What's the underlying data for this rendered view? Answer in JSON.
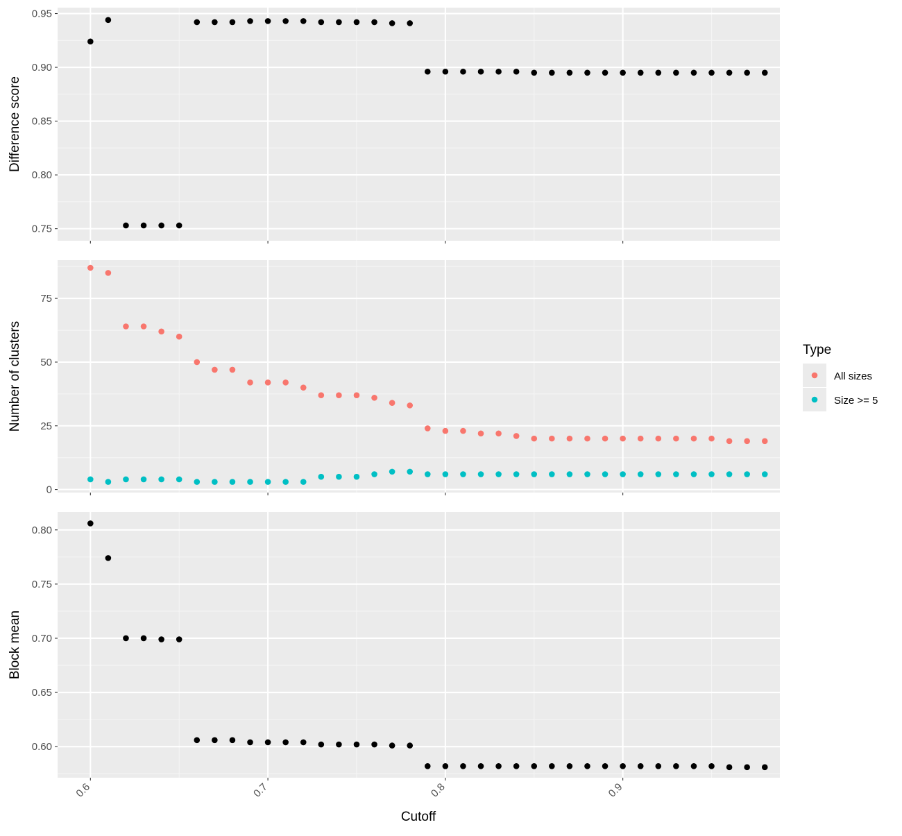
{
  "colors": {
    "panel_bg": "#EBEBEB",
    "grid_major": "#FFFFFF",
    "grid_minor": "#F5F5F5",
    "tick": "#333333",
    "point_default": "#000000",
    "all_sizes": "#F8766D",
    "size_ge_5": "#00BFC4"
  },
  "x_axis": {
    "title": "Cutoff",
    "ticks": [
      0.6,
      0.7,
      0.8,
      0.9
    ],
    "tick_labels": [
      "0.6",
      "0.7",
      "0.8",
      "0.9"
    ]
  },
  "legend": {
    "title": "Type",
    "entries": [
      {
        "label": "All sizes",
        "color": "#F8766D"
      },
      {
        "label": "Size >= 5",
        "color": "#00BFC4"
      }
    ]
  },
  "chart_data": [
    {
      "type": "scatter",
      "ylabel": "Difference score",
      "xlim": [
        0.5815,
        0.9885
      ],
      "ylim": [
        0.7388,
        0.9555
      ],
      "yticks": [
        0.75,
        0.8,
        0.85,
        0.9,
        0.95
      ],
      "ytick_labels": [
        "0.75",
        "0.80",
        "0.85",
        "0.90",
        "0.95"
      ],
      "x": [
        0.6,
        0.61,
        0.62,
        0.63,
        0.64,
        0.65,
        0.66,
        0.67,
        0.68,
        0.69,
        0.7,
        0.71,
        0.72,
        0.73,
        0.74,
        0.75,
        0.76,
        0.77,
        0.78,
        0.79,
        0.8,
        0.81,
        0.82,
        0.83,
        0.84,
        0.85,
        0.86,
        0.87,
        0.88,
        0.89,
        0.9,
        0.91,
        0.92,
        0.93,
        0.94,
        0.95,
        0.96,
        0.97,
        0.98
      ],
      "series": [
        {
          "color": "#000000",
          "values": [
            0.924,
            0.944,
            0.753,
            0.753,
            0.753,
            0.753,
            0.942,
            0.942,
            0.942,
            0.943,
            0.943,
            0.943,
            0.943,
            0.942,
            0.942,
            0.942,
            0.942,
            0.941,
            0.941,
            0.896,
            0.896,
            0.896,
            0.896,
            0.896,
            0.896,
            0.895,
            0.895,
            0.895,
            0.895,
            0.895,
            0.895,
            0.895,
            0.895,
            0.895,
            0.895,
            0.895,
            0.895,
            0.895,
            0.895
          ]
        }
      ]
    },
    {
      "type": "scatter",
      "ylabel": "Number of clusters",
      "xlim": [
        0.5815,
        0.9885
      ],
      "ylim": [
        -1.2,
        90.0
      ],
      "yticks": [
        0,
        25,
        50,
        75
      ],
      "ytick_labels": [
        "0",
        "25",
        "50",
        "75"
      ],
      "x": [
        0.6,
        0.61,
        0.62,
        0.63,
        0.64,
        0.65,
        0.66,
        0.67,
        0.68,
        0.69,
        0.7,
        0.71,
        0.72,
        0.73,
        0.74,
        0.75,
        0.76,
        0.77,
        0.78,
        0.79,
        0.8,
        0.81,
        0.82,
        0.83,
        0.84,
        0.85,
        0.86,
        0.87,
        0.88,
        0.89,
        0.9,
        0.91,
        0.92,
        0.93,
        0.94,
        0.95,
        0.96,
        0.97,
        0.98
      ],
      "series": [
        {
          "name": "All sizes",
          "color": "#F8766D",
          "values": [
            87,
            85,
            64,
            64,
            62,
            60,
            50,
            47,
            47,
            42,
            42,
            42,
            40,
            37,
            37,
            37,
            36,
            34,
            33,
            24,
            23,
            23,
            22,
            22,
            21,
            20,
            20,
            20,
            20,
            20,
            20,
            20,
            20,
            20,
            20,
            20,
            19,
            19,
            19
          ]
        },
        {
          "name": "Size >= 5",
          "color": "#00BFC4",
          "values": [
            4,
            3,
            4,
            4,
            4,
            4,
            3,
            3,
            3,
            3,
            3,
            3,
            3,
            5,
            5,
            5,
            6,
            7,
            7,
            6,
            6,
            6,
            6,
            6,
            6,
            6,
            6,
            6,
            6,
            6,
            6,
            6,
            6,
            6,
            6,
            6,
            6,
            6,
            6
          ]
        }
      ]
    },
    {
      "type": "scatter",
      "ylabel": "Block mean",
      "xlim": [
        0.5815,
        0.9885
      ],
      "ylim": [
        0.5713,
        0.8165
      ],
      "yticks": [
        0.6,
        0.65,
        0.7,
        0.75,
        0.8
      ],
      "ytick_labels": [
        "0.60",
        "0.65",
        "0.70",
        "0.75",
        "0.80"
      ],
      "x": [
        0.6,
        0.61,
        0.62,
        0.63,
        0.64,
        0.65,
        0.66,
        0.67,
        0.68,
        0.69,
        0.7,
        0.71,
        0.72,
        0.73,
        0.74,
        0.75,
        0.76,
        0.77,
        0.78,
        0.79,
        0.8,
        0.81,
        0.82,
        0.83,
        0.84,
        0.85,
        0.86,
        0.87,
        0.88,
        0.89,
        0.9,
        0.91,
        0.92,
        0.93,
        0.94,
        0.95,
        0.96,
        0.97,
        0.98
      ],
      "series": [
        {
          "color": "#000000",
          "values": [
            0.806,
            0.774,
            0.7,
            0.7,
            0.699,
            0.699,
            0.606,
            0.606,
            0.606,
            0.604,
            0.604,
            0.604,
            0.604,
            0.602,
            0.602,
            0.602,
            0.602,
            0.601,
            0.601,
            0.582,
            0.582,
            0.582,
            0.582,
            0.582,
            0.582,
            0.582,
            0.582,
            0.582,
            0.582,
            0.582,
            0.582,
            0.582,
            0.582,
            0.582,
            0.582,
            0.582,
            0.581,
            0.581,
            0.581
          ]
        }
      ]
    }
  ]
}
